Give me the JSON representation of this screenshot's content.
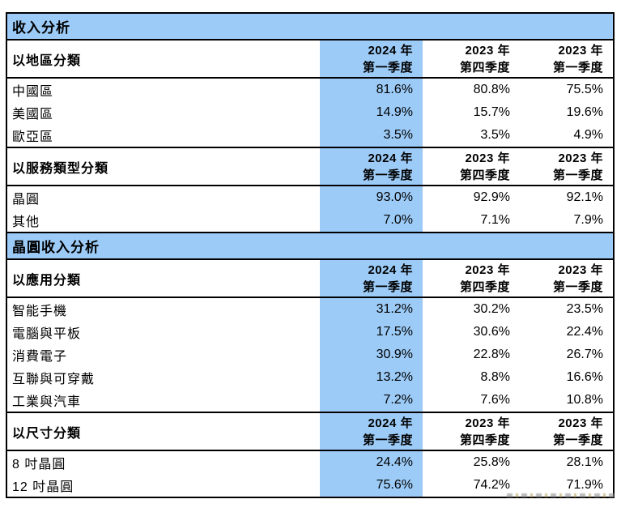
{
  "colors": {
    "band_blue": "#9ccbf7",
    "highlight_blue": "#9ccbf7",
    "border": "#000000",
    "text": "#000000",
    "background": "#ffffff"
  },
  "sections": [
    {
      "band": "收入分析",
      "groups": [
        {
          "header": "以地區分類",
          "cols": [
            {
              "l1": "2024 年",
              "l2": "第一季度"
            },
            {
              "l1": "2023 年",
              "l2": "第四季度"
            },
            {
              "l1": "2023 年",
              "l2": "第一季度"
            }
          ],
          "rows": [
            {
              "label": "中國區",
              "v1": "81.6%",
              "v2": "80.8%",
              "v3": "75.5%"
            },
            {
              "label": "美國區",
              "v1": "14.9%",
              "v2": "15.7%",
              "v3": "19.6%"
            },
            {
              "label": "歐亞區",
              "v1": "3.5%",
              "v2": "3.5%",
              "v3": "4.9%"
            }
          ]
        },
        {
          "header": "以服務類型分類",
          "cols": [
            {
              "l1": "2024 年",
              "l2": "第一季度"
            },
            {
              "l1": "2023 年",
              "l2": "第四季度"
            },
            {
              "l1": "2023 年",
              "l2": "第一季度"
            }
          ],
          "rows": [
            {
              "label": "晶圓",
              "v1": "93.0%",
              "v2": "92.9%",
              "v3": "92.1%"
            },
            {
              "label": "其他",
              "v1": "7.0%",
              "v2": "7.1%",
              "v3": "7.9%"
            }
          ]
        }
      ]
    },
    {
      "band": "晶圓收入分析",
      "groups": [
        {
          "header": "以應用分類",
          "cols": [
            {
              "l1": "2024 年",
              "l2": "第一季度"
            },
            {
              "l1": "2023 年",
              "l2": "第四季度"
            },
            {
              "l1": "2023 年",
              "l2": "第一季度"
            }
          ],
          "rows": [
            {
              "label": "智能手機",
              "v1": "31.2%",
              "v2": "30.2%",
              "v3": "23.5%"
            },
            {
              "label": "電腦與平板",
              "v1": "17.5%",
              "v2": "30.6%",
              "v3": "22.4%"
            },
            {
              "label": "消費電子",
              "v1": "30.9%",
              "v2": "22.8%",
              "v3": "26.7%"
            },
            {
              "label": "互聯與可穿戴",
              "v1": "13.2%",
              "v2": "8.8%",
              "v3": "16.6%"
            },
            {
              "label": "工業與汽車",
              "v1": "7.2%",
              "v2": "7.6%",
              "v3": "10.8%"
            }
          ]
        },
        {
          "header": "以尺寸分類",
          "cols": [
            {
              "l1": "2024 年",
              "l2": "第一季度"
            },
            {
              "l1": "2023 年",
              "l2": "第四季度"
            },
            {
              "l1": "2023 年",
              "l2": "第一季度"
            }
          ],
          "rows": [
            {
              "label": "8 吋晶圓",
              "v1": "24.4%",
              "v2": "25.8%",
              "v3": "28.1%"
            },
            {
              "label": "12 吋晶圓",
              "v1": "75.6%",
              "v2": "74.2%",
              "v3": "71.9%"
            }
          ]
        }
      ]
    }
  ]
}
